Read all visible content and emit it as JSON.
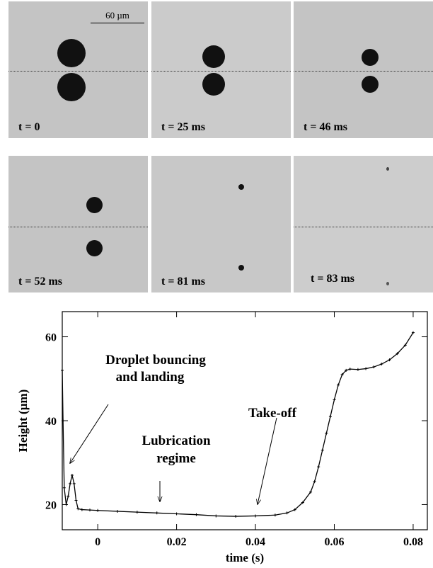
{
  "panels": [
    {
      "label": "t = 0"
    },
    {
      "label": "t = 25 ms"
    },
    {
      "label": "t = 46 ms"
    },
    {
      "label": "t = 52 ms"
    },
    {
      "label": "t = 81 ms"
    },
    {
      "label": "t = 83 ms"
    }
  ],
  "scale_bar": "60 µm",
  "chart_data": {
    "type": "line",
    "x_label": "time (s)",
    "y_label": "Height (µm)",
    "annotations": [
      [
        "Droplet bouncing",
        "and landing"
      ],
      [
        "Lubrication",
        "regime"
      ],
      [
        "Take-off"
      ]
    ],
    "x": [
      -0.009,
      -0.0088,
      -0.0085,
      -0.008,
      -0.0075,
      -0.007,
      -0.0065,
      -0.006,
      -0.0055,
      -0.005,
      -0.004,
      -0.002,
      0,
      0.005,
      0.01,
      0.015,
      0.02,
      0.025,
      0.03,
      0.035,
      0.04,
      0.045,
      0.048,
      0.05,
      0.052,
      0.054,
      0.055,
      0.056,
      0.057,
      0.058,
      0.059,
      0.06,
      0.061,
      0.062,
      0.063,
      0.064,
      0.066,
      0.068,
      0.07,
      0.072,
      0.074,
      0.076,
      0.078,
      0.08
    ],
    "values": [
      52,
      40,
      24,
      20,
      22,
      25,
      27,
      25,
      21,
      19,
      18.8,
      18.7,
      18.6,
      18.4,
      18.2,
      18,
      17.8,
      17.6,
      17.3,
      17.2,
      17.3,
      17.5,
      18,
      18.8,
      20.5,
      23,
      25.5,
      29,
      33,
      37,
      41,
      45,
      48.5,
      51,
      52,
      52.3,
      52.2,
      52.4,
      52.8,
      53.5,
      54.5,
      56,
      58,
      61
    ],
    "color": "#000000",
    "xlim": [
      -0.009,
      0.0836
    ],
    "ylim": [
      14,
      66
    ],
    "xticks": [
      0,
      0.02,
      0.04,
      0.06,
      0.08
    ],
    "yticks": [
      20,
      40,
      60
    ]
  }
}
